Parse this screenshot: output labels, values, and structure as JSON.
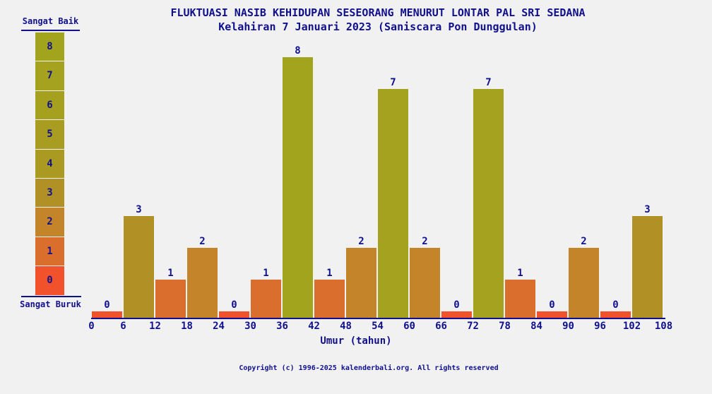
{
  "colors": {
    "background": "#f1f1f1",
    "text": "#10108d",
    "axis": "#10108d"
  },
  "chart_data": {
    "type": "bar",
    "title": "FLUKTUASI NASIB KEHIDUPAN SESEORANG MENURUT LONTAR PAL SRI SEDANA",
    "subtitle": "Kelahiran 7 Januari 2023 (Saniscara Pon Dunggulan)",
    "xlabel": "Umur (tahun)",
    "grid": false,
    "ylim": [
      0,
      8
    ],
    "x_tick_labels": [
      "0",
      "6",
      "12",
      "18",
      "24",
      "30",
      "36",
      "42",
      "48",
      "54",
      "60",
      "66",
      "72",
      "78",
      "84",
      "90",
      "96",
      "102",
      "108"
    ],
    "categories": [
      "0-6",
      "6-12",
      "12-18",
      "18-24",
      "24-30",
      "30-36",
      "36-42",
      "42-48",
      "48-54",
      "54-60",
      "60-66",
      "66-72",
      "72-78",
      "78-84",
      "84-90",
      "90-96",
      "96-102",
      "102-108"
    ],
    "values": [
      0,
      3,
      1,
      2,
      0,
      1,
      8,
      1,
      2,
      7,
      2,
      0,
      7,
      1,
      0,
      2,
      0,
      3
    ],
    "bar_value_labels_shown": true,
    "value_colors": {
      "0": "#f1512b",
      "1": "#da6e2d",
      "2": "#c48429",
      "3": "#b19126",
      "4": "#ab9a21",
      "5": "#a89d20",
      "6": "#a6a01f",
      "7": "#a4a21e",
      "8": "#a3a41e"
    },
    "legend": {
      "position": "left",
      "top_label": "Sangat Baik",
      "bottom_label": "Sangat Buruk",
      "scale_values": [
        "8",
        "7",
        "6",
        "5",
        "4",
        "3",
        "2",
        "1",
        "0"
      ]
    }
  },
  "footer": {
    "copyright": "Copyright (c) 1996-2025 kalenderbali.org. All rights reserved"
  }
}
